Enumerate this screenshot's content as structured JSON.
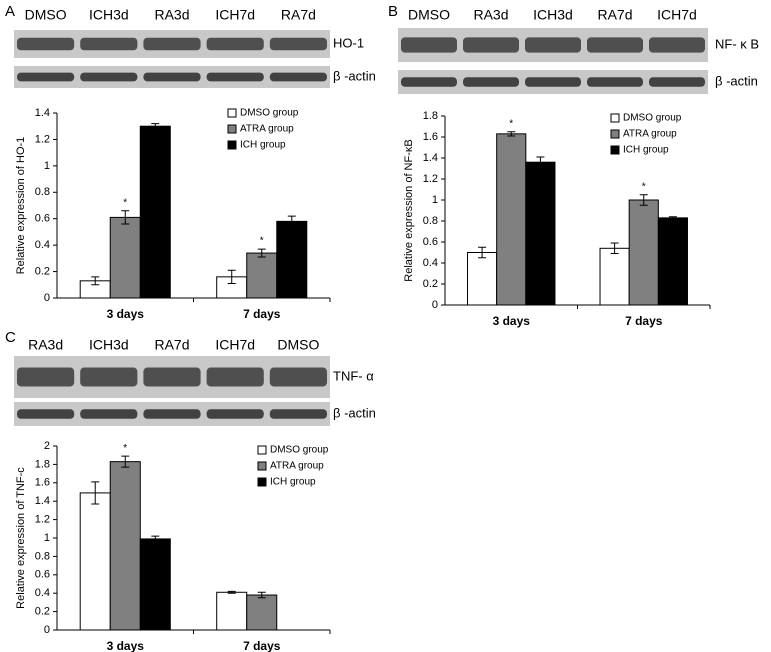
{
  "blots": [
    {
      "letter": "A",
      "lanes": [
        "DMSO",
        "ICH3d",
        "RA3d",
        "ICH7d",
        "RA7d"
      ],
      "bands": [
        "HO-1",
        "β -actin"
      ]
    },
    {
      "letter": "B",
      "lanes": [
        "DMSO",
        "RA3d",
        "ICH3d",
        "RA7d",
        "ICH7d"
      ],
      "bands": [
        "NF- κ B",
        "β -actin"
      ]
    },
    {
      "letter": "C",
      "lanes": [
        "RA3d",
        "ICH3d",
        "RA7d",
        "ICH7d",
        "DMSO"
      ],
      "bands": [
        "TNF- α",
        "β -actin"
      ]
    }
  ],
  "chart_data": [
    {
      "type": "bar",
      "y_label": "Relative expression of HO-1",
      "categories": [
        "3 days",
        "7 days"
      ],
      "series": [
        {
          "name": "DMSO group",
          "color": "#ffffff",
          "values": [
            0.13,
            0.16
          ],
          "errors": [
            0.03,
            0.05
          ]
        },
        {
          "name": "ATRA group",
          "color": "#808080",
          "values": [
            0.61,
            0.34
          ],
          "errors": [
            0.05,
            0.03
          ],
          "significance": [
            "*",
            "*"
          ]
        },
        {
          "name": "ICH group",
          "color": "#000000",
          "values": [
            1.3,
            0.58
          ],
          "errors": [
            0.02,
            0.04
          ]
        }
      ],
      "ylim": [
        0,
        1.4
      ],
      "yticks": [
        0,
        0.2,
        0.4,
        0.6,
        0.8,
        1,
        1.2,
        1.4
      ],
      "grid": false,
      "legend": "upper right"
    },
    {
      "type": "bar",
      "y_label": "Relative expression of NF-κB",
      "categories": [
        "3 days",
        "7 days"
      ],
      "series": [
        {
          "name": "DMSO group",
          "color": "#ffffff",
          "values": [
            0.5,
            0.54
          ],
          "errors": [
            0.05,
            0.05
          ]
        },
        {
          "name": "ATRA group",
          "color": "#808080",
          "values": [
            1.63,
            1.0
          ],
          "errors": [
            0.02,
            0.05
          ],
          "significance": [
            "*",
            "*"
          ]
        },
        {
          "name": "ICH group",
          "color": "#000000",
          "values": [
            1.36,
            0.83
          ],
          "errors": [
            0.05,
            0.01
          ]
        }
      ],
      "ylim": [
        0,
        1.8
      ],
      "yticks": [
        0,
        0.2,
        0.4,
        0.6,
        0.8,
        1,
        1.2,
        1.4,
        1.6,
        1.8
      ],
      "grid": false,
      "legend": "upper right"
    },
    {
      "type": "bar",
      "y_label": "Relative expression of TNF-c",
      "categories": [
        "3 days",
        "7 days"
      ],
      "series": [
        {
          "name": "DMSO group",
          "color": "#ffffff",
          "values": [
            1.49,
            0.41
          ],
          "errors": [
            0.12,
            0.01
          ]
        },
        {
          "name": "ATRA group",
          "color": "#808080",
          "values": [
            1.83,
            0.38
          ],
          "errors": [
            0.06,
            0.03
          ],
          "significance": [
            "*",
            null
          ]
        },
        {
          "name": "ICH group",
          "color": "#000000",
          "values": [
            0.99,
            null
          ],
          "errors": [
            0.03,
            null
          ]
        }
      ],
      "ylim": [
        0,
        2
      ],
      "yticks": [
        0,
        0.2,
        0.4,
        0.6,
        0.8,
        1,
        1.2,
        1.4,
        1.6,
        1.8,
        2
      ],
      "grid": false,
      "legend": "upper right"
    }
  ]
}
